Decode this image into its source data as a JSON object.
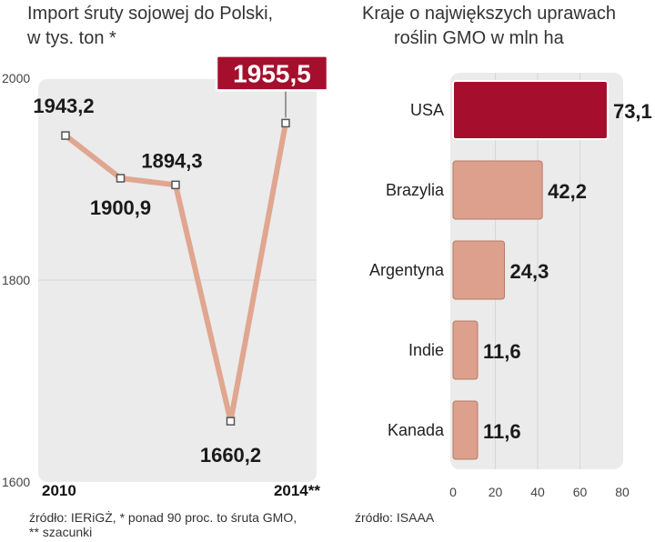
{
  "colors": {
    "panel": "#ebebeb",
    "line": "#e0a690",
    "bar": "#dca08c",
    "bar_stroke": "#b87a66",
    "highlight": "#a50f2d",
    "grid": "#ffffff"
  },
  "chart_data": [
    {
      "type": "line",
      "title_lines": [
        "Import śruty sojowej  do Polski,",
        "w tys. ton *"
      ],
      "x": [
        2010,
        2011,
        2012,
        2013,
        2014
      ],
      "x_tick_labels": [
        "2010",
        "2014**"
      ],
      "values": [
        1943.2,
        1900.9,
        1894.3,
        1660.2,
        1955.5
      ],
      "value_labels": [
        "1943,2",
        "1900,9",
        "1894,3",
        "1660,2",
        "1955,5"
      ],
      "highlight_index": 4,
      "ylim": [
        1600,
        2000
      ],
      "y_ticks": [
        1600,
        1800,
        2000
      ],
      "y_tick_labels": [
        "1600",
        "1800",
        "2000"
      ],
      "source": "źródło: IERiGŻ, * ponad 90 proc. to śruta GMO,",
      "source_note": "** szacunki"
    },
    {
      "type": "bar",
      "orientation": "horizontal",
      "title_lines": [
        "Kraje o największych uprawach",
        "roślin GMO w mln ha"
      ],
      "categories": [
        "USA",
        "Brazylia",
        "Argentyna",
        "Indie",
        "Kanada"
      ],
      "values": [
        73.1,
        42.2,
        24.3,
        11.6,
        11.6
      ],
      "value_labels": [
        "73,1",
        "42,2",
        "24,3",
        "11,6",
        "11,6"
      ],
      "highlight_index": 0,
      "xlim": [
        0,
        80
      ],
      "x_ticks": [
        0,
        20,
        40,
        60,
        80
      ],
      "x_tick_labels": [
        "0",
        "20",
        "40",
        "60",
        "80"
      ],
      "source": "źródło: ISAAA"
    }
  ]
}
